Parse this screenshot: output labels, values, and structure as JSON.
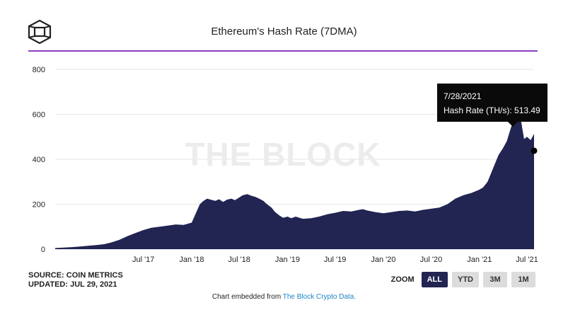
{
  "header": {
    "title": "Ethereum's Hash Rate (7DMA)"
  },
  "watermark": "THE BLOCK",
  "source": {
    "line1": "SOURCE: COIN METRICS",
    "line2": "UPDATED: JUL 29, 2021"
  },
  "zoom": {
    "label": "ZOOM",
    "buttons": [
      "ALL",
      "YTD",
      "3M",
      "1M"
    ],
    "active": "ALL"
  },
  "footer": {
    "prefix": "Chart embedded from ",
    "link": "The Block Crypto Data."
  },
  "tooltip": {
    "date": "7/28/2021",
    "line": "Hash Rate (TH/s): 513.49"
  },
  "colors": {
    "area": "#222552",
    "accent_rule": "#8a3fc4",
    "grid": "#e6e6e6"
  },
  "chart_data": {
    "type": "area",
    "title": "Ethereum's Hash Rate (7DMA)",
    "xlabel": "",
    "ylabel": "",
    "ylim": [
      0,
      800
    ],
    "yticks": [
      0,
      200,
      400,
      600,
      800
    ],
    "xlim": [
      "2016-07-30",
      "2021-07-28"
    ],
    "xticks": [
      {
        "date": "2017-07-01",
        "label": "Jul '17"
      },
      {
        "date": "2018-01-01",
        "label": "Jan '18"
      },
      {
        "date": "2018-07-01",
        "label": "Jul '18"
      },
      {
        "date": "2019-01-01",
        "label": "Jan '19"
      },
      {
        "date": "2019-07-01",
        "label": "Jul '19"
      },
      {
        "date": "2020-01-01",
        "label": "Jan '20"
      },
      {
        "date": "2020-07-01",
        "label": "Jul '20"
      },
      {
        "date": "2021-01-01",
        "label": "Jan '21"
      },
      {
        "date": "2021-07-01",
        "label": "Jul '21"
      }
    ],
    "grid": true,
    "legend": "none",
    "series": [
      {
        "x": [
          "2016-07-30",
          "2016-09-01",
          "2016-10-01",
          "2016-11-01",
          "2016-12-01",
          "2017-01-01",
          "2017-02-01",
          "2017-03-01",
          "2017-04-01",
          "2017-05-01",
          "2017-06-01",
          "2017-07-01",
          "2017-08-01",
          "2017-09-01",
          "2017-10-01",
          "2017-11-01",
          "2017-12-01",
          "2018-01-01",
          "2018-01-15",
          "2018-02-01",
          "2018-02-15",
          "2018-03-01",
          "2018-03-15",
          "2018-04-01",
          "2018-04-15",
          "2018-05-01",
          "2018-05-15",
          "2018-06-01",
          "2018-06-15",
          "2018-07-01",
          "2018-07-15",
          "2018-08-01",
          "2018-08-15",
          "2018-09-01",
          "2018-09-15",
          "2018-10-01",
          "2018-10-15",
          "2018-11-01",
          "2018-11-15",
          "2018-12-01",
          "2018-12-15",
          "2019-01-01",
          "2019-01-15",
          "2019-02-01",
          "2019-02-15",
          "2019-03-01",
          "2019-04-01",
          "2019-05-01",
          "2019-06-01",
          "2019-07-01",
          "2019-08-01",
          "2019-09-01",
          "2019-10-01",
          "2019-10-15",
          "2019-11-01",
          "2019-12-01",
          "2020-01-01",
          "2020-02-01",
          "2020-03-01",
          "2020-04-01",
          "2020-05-01",
          "2020-06-01",
          "2020-07-01",
          "2020-08-01",
          "2020-09-01",
          "2020-10-01",
          "2020-11-01",
          "2020-12-01",
          "2021-01-01",
          "2021-01-15",
          "2021-02-01",
          "2021-02-15",
          "2021-03-01",
          "2021-03-15",
          "2021-04-01",
          "2021-04-15",
          "2021-05-01",
          "2021-05-10",
          "2021-05-15",
          "2021-05-20",
          "2021-06-01",
          "2021-06-10",
          "2021-06-20",
          "2021-07-01",
          "2021-07-15",
          "2021-07-28"
        ],
        "values": [
          5,
          7,
          9,
          12,
          15,
          18,
          22,
          30,
          42,
          58,
          72,
          85,
          95,
          100,
          105,
          110,
          108,
          118,
          155,
          200,
          215,
          225,
          220,
          215,
          222,
          210,
          220,
          225,
          218,
          230,
          240,
          245,
          238,
          232,
          225,
          215,
          200,
          185,
          165,
          150,
          140,
          145,
          138,
          145,
          140,
          135,
          138,
          145,
          155,
          162,
          170,
          168,
          175,
          178,
          172,
          165,
          160,
          165,
          170,
          172,
          168,
          175,
          180,
          185,
          200,
          225,
          240,
          250,
          265,
          275,
          300,
          340,
          380,
          420,
          450,
          480,
          540,
          570,
          610,
          640,
          620,
          560,
          490,
          500,
          485,
          513.49
        ]
      }
    ]
  }
}
